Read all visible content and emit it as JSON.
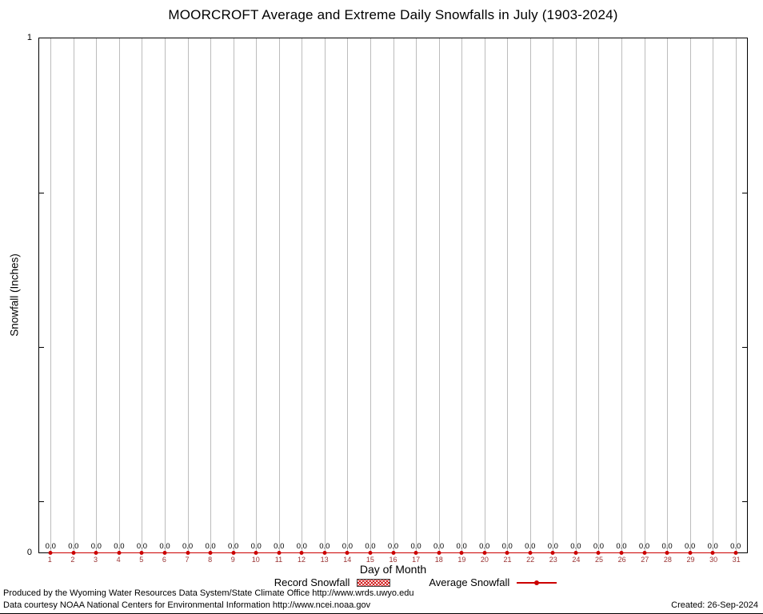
{
  "chart_data": {
    "type": "line",
    "title": "MOORCROFT Average and Extreme Daily Snowfalls in July (1903-2024)",
    "xlabel": "Day of Month",
    "ylabel": "Snowfall (Inches)",
    "ylim": [
      0,
      1
    ],
    "ytick_labels": [
      "0",
      "1"
    ],
    "y_minor_ticks": [
      0.1,
      0.4,
      0.7
    ],
    "grid": "vertical-line-per-day",
    "legend_position": "bottom",
    "categories": [
      1,
      2,
      3,
      4,
      5,
      6,
      7,
      8,
      9,
      10,
      11,
      12,
      13,
      14,
      15,
      16,
      17,
      18,
      19,
      20,
      21,
      22,
      23,
      24,
      25,
      26,
      27,
      28,
      29,
      30,
      31
    ],
    "series": [
      {
        "name": "Record Snowfall",
        "type": "bar",
        "color": "#cc0000",
        "values": [
          0,
          0,
          0,
          0,
          0,
          0,
          0,
          0,
          0,
          0,
          0,
          0,
          0,
          0,
          0,
          0,
          0,
          0,
          0,
          0,
          0,
          0,
          0,
          0,
          0,
          0,
          0,
          0,
          0,
          0,
          0
        ]
      },
      {
        "name": "Average Snowfall",
        "type": "line",
        "color": "#cc0000",
        "values": [
          0,
          0,
          0,
          0,
          0,
          0,
          0,
          0,
          0,
          0,
          0,
          0,
          0,
          0,
          0,
          0,
          0,
          0,
          0,
          0,
          0,
          0,
          0,
          0,
          0,
          0,
          0,
          0,
          0,
          0,
          0
        ]
      }
    ],
    "point_labels_shown": "0.0"
  },
  "colors": {
    "series_red": "#cc0000",
    "gridline": "#bcbcbc",
    "x_tick_label": "#993333",
    "axis": "#000000"
  },
  "footer": {
    "line1": "Produced by the Wyoming Water Resources Data System/State Climate Office http://www.wrds.uwyo.edu",
    "line2": "Data courtesy NOAA National Centers for Environmental Information http://www.ncei.noaa.gov",
    "created": "Created: 26-Sep-2024"
  }
}
